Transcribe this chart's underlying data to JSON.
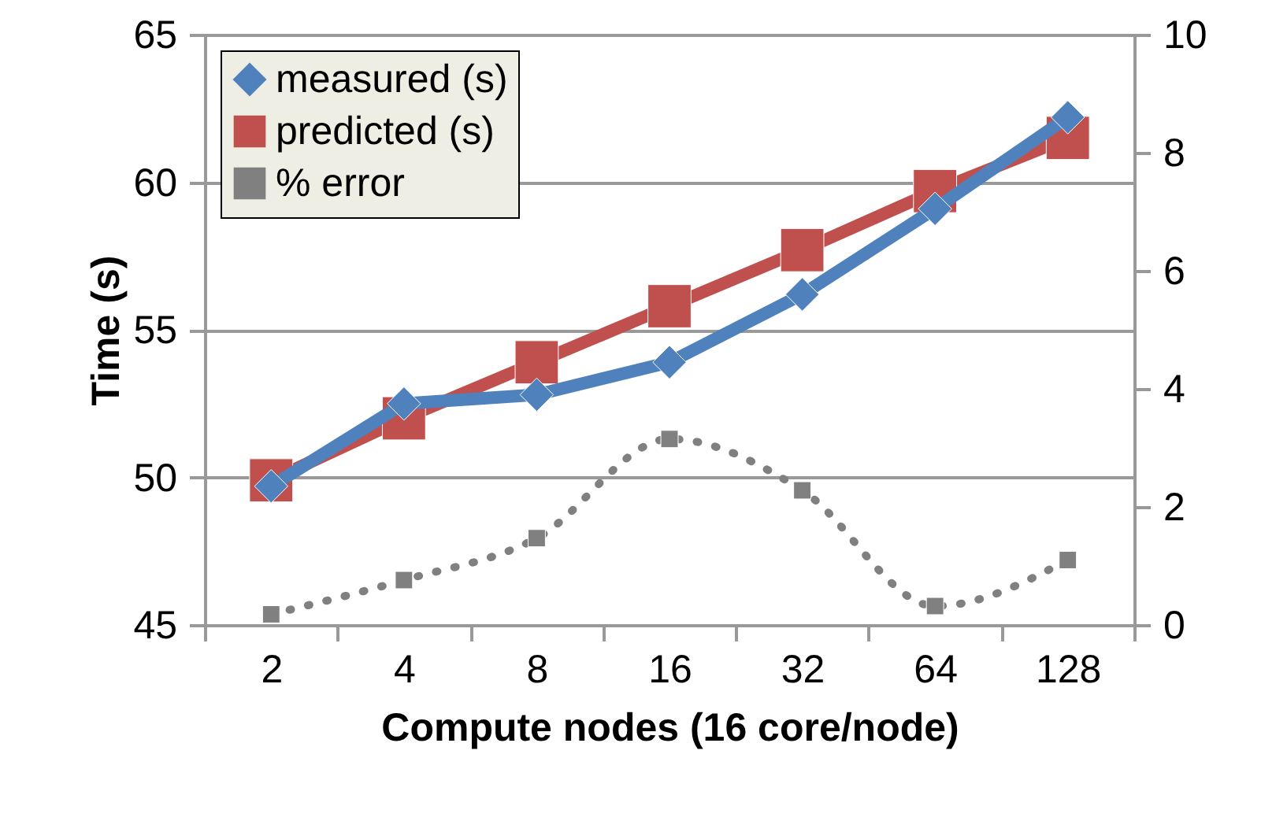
{
  "chart_data": {
    "type": "line",
    "xlabel": "Compute nodes (16 core/node)",
    "ylabel": "Time (s)",
    "categories": [
      "2",
      "4",
      "8",
      "16",
      "32",
      "64",
      "128"
    ],
    "series": [
      {
        "name": "measured (s)",
        "color": "#4f81bd",
        "values": [
          49.7,
          52.5,
          52.8,
          53.9,
          56.2,
          59.1,
          62.2
        ],
        "marker": "diamond",
        "line_style": "solid"
      },
      {
        "name": "predicted (s)",
        "color": "#c0504d",
        "values": [
          49.9,
          52.0,
          53.9,
          55.8,
          57.7,
          59.7,
          61.5
        ],
        "marker": "square",
        "line_style": "solid"
      },
      {
        "name": "% error",
        "color": "#808080",
        "values": [
          0.18,
          0.76,
          1.47,
          3.15,
          2.28,
          0.32,
          1.1
        ],
        "axis": "y2",
        "marker": "square",
        "line_style": "dotted"
      }
    ],
    "ylim": [
      45,
      65
    ],
    "yticks": [
      45,
      50,
      55,
      60,
      65
    ],
    "y2lim": [
      0,
      10
    ],
    "y2ticks": [
      0,
      2,
      4,
      6,
      8,
      10
    ],
    "grid": "y",
    "legend": "top left"
  }
}
